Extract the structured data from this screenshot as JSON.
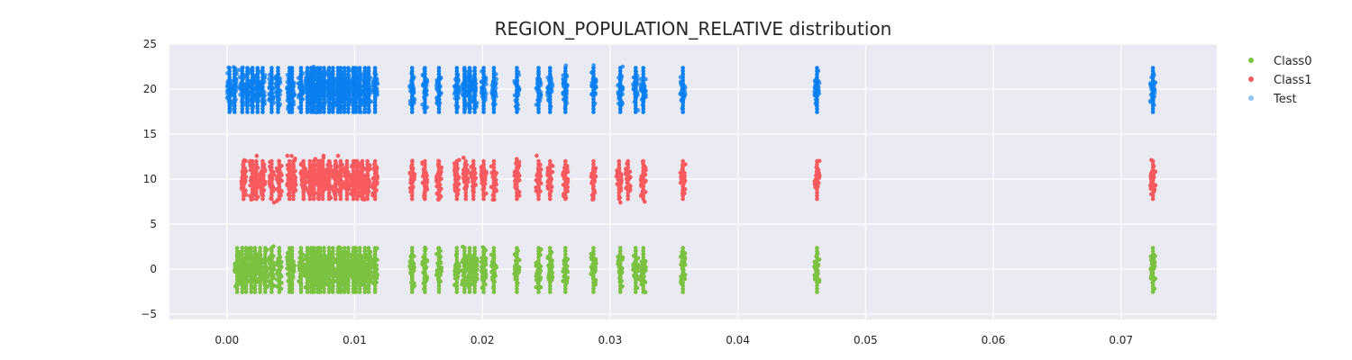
{
  "chart_data": {
    "type": "scatter",
    "title": "REGION_POPULATION_RELATIVE distribution",
    "xlabel": "",
    "ylabel": "",
    "xlim": [
      -0.0045,
      0.0775
    ],
    "ylim": [
      -5.6,
      25.0
    ],
    "xticks": [
      0.0,
      0.01,
      0.02,
      0.03,
      0.04,
      0.05,
      0.06,
      0.07
    ],
    "xtick_labels": [
      "0.00",
      "0.01",
      "0.02",
      "0.03",
      "0.04",
      "0.05",
      "0.06",
      "0.07"
    ],
    "yticks": [
      -5,
      0,
      5,
      10,
      15,
      20,
      25
    ],
    "ytick_labels": [
      "−5",
      "0",
      "5",
      "10",
      "15",
      "20",
      "25"
    ],
    "grid": true,
    "legend_position": "top-right",
    "background_color": "#eaeaf2",
    "series": [
      {
        "name": "Class0",
        "color": "#7cc241",
        "center": 0,
        "spread": 3.0,
        "x": [
          0.0008,
          0.0012,
          0.0015,
          0.0019,
          0.0022,
          0.0026,
          0.003,
          0.0035,
          0.0041,
          0.0049,
          0.0051,
          0.0058,
          0.0063,
          0.0066,
          0.0068,
          0.0071,
          0.0073,
          0.0076,
          0.008,
          0.0083,
          0.0087,
          0.0089,
          0.0092,
          0.0095,
          0.0099,
          0.0101,
          0.0104,
          0.0108,
          0.0111,
          0.0116,
          0.0145,
          0.0155,
          0.0166,
          0.018,
          0.0186,
          0.019,
          0.0194,
          0.0201,
          0.0209,
          0.0227,
          0.0244,
          0.0253,
          0.0265,
          0.0287,
          0.0308,
          0.032,
          0.0326,
          0.0357,
          0.0462,
          0.0725
        ]
      },
      {
        "name": "Class1",
        "color": "#f85a5e",
        "center": 10,
        "spread": 2.6,
        "x": [
          0.0013,
          0.002,
          0.0023,
          0.0028,
          0.0035,
          0.0041,
          0.0049,
          0.0052,
          0.006,
          0.0065,
          0.0068,
          0.0072,
          0.0075,
          0.008,
          0.0085,
          0.0089,
          0.0094,
          0.0099,
          0.0102,
          0.0106,
          0.011,
          0.0116,
          0.0145,
          0.0155,
          0.0166,
          0.018,
          0.0187,
          0.0193,
          0.0201,
          0.0209,
          0.0227,
          0.0244,
          0.0253,
          0.0265,
          0.0287,
          0.0307,
          0.0314,
          0.0326,
          0.0357,
          0.0462,
          0.0725
        ]
      },
      {
        "name": "Test",
        "color": "#0a7ff0",
        "center": 20,
        "spread": 3.0,
        "x": [
          0.0002,
          0.0006,
          0.0012,
          0.0016,
          0.002,
          0.0024,
          0.0028,
          0.0035,
          0.004,
          0.0049,
          0.0051,
          0.0058,
          0.0063,
          0.0066,
          0.0068,
          0.0071,
          0.0073,
          0.0076,
          0.008,
          0.0083,
          0.0087,
          0.0089,
          0.0092,
          0.0095,
          0.0099,
          0.0101,
          0.0104,
          0.0108,
          0.0111,
          0.0116,
          0.0145,
          0.0155,
          0.0166,
          0.018,
          0.0186,
          0.019,
          0.0194,
          0.0201,
          0.0209,
          0.0227,
          0.0244,
          0.0253,
          0.0265,
          0.0287,
          0.0308,
          0.032,
          0.0326,
          0.0357,
          0.0462,
          0.0725
        ]
      }
    ]
  }
}
